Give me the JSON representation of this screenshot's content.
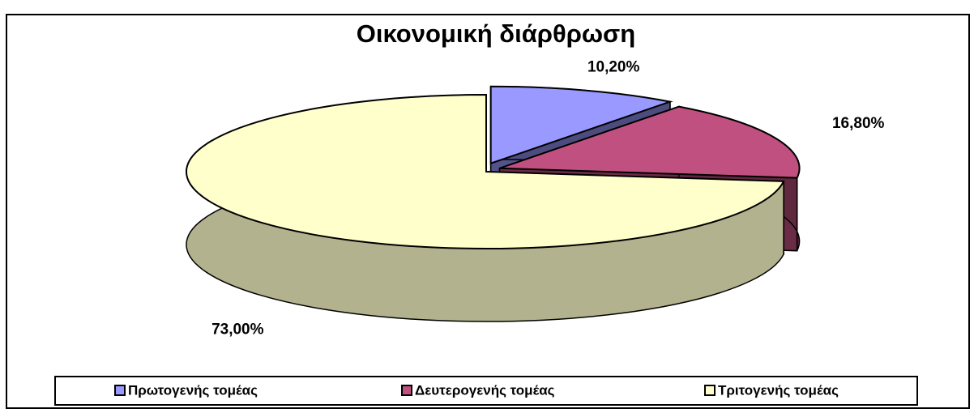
{
  "chart_data": {
    "type": "pie3d",
    "title": "Οικονομική διάρθρωση",
    "categories": [
      "Πρωτογενής τομέας",
      "Δευτερογενής τομέας",
      "Τριτογενής τομέας"
    ],
    "values": [
      10.2,
      16.8,
      73
    ],
    "value_labels": [
      "10,20%",
      "16,80%",
      "73,00%"
    ],
    "colors": [
      "#9999ff",
      "#c0507f",
      "#ffffcc"
    ],
    "legend": "bottom"
  }
}
